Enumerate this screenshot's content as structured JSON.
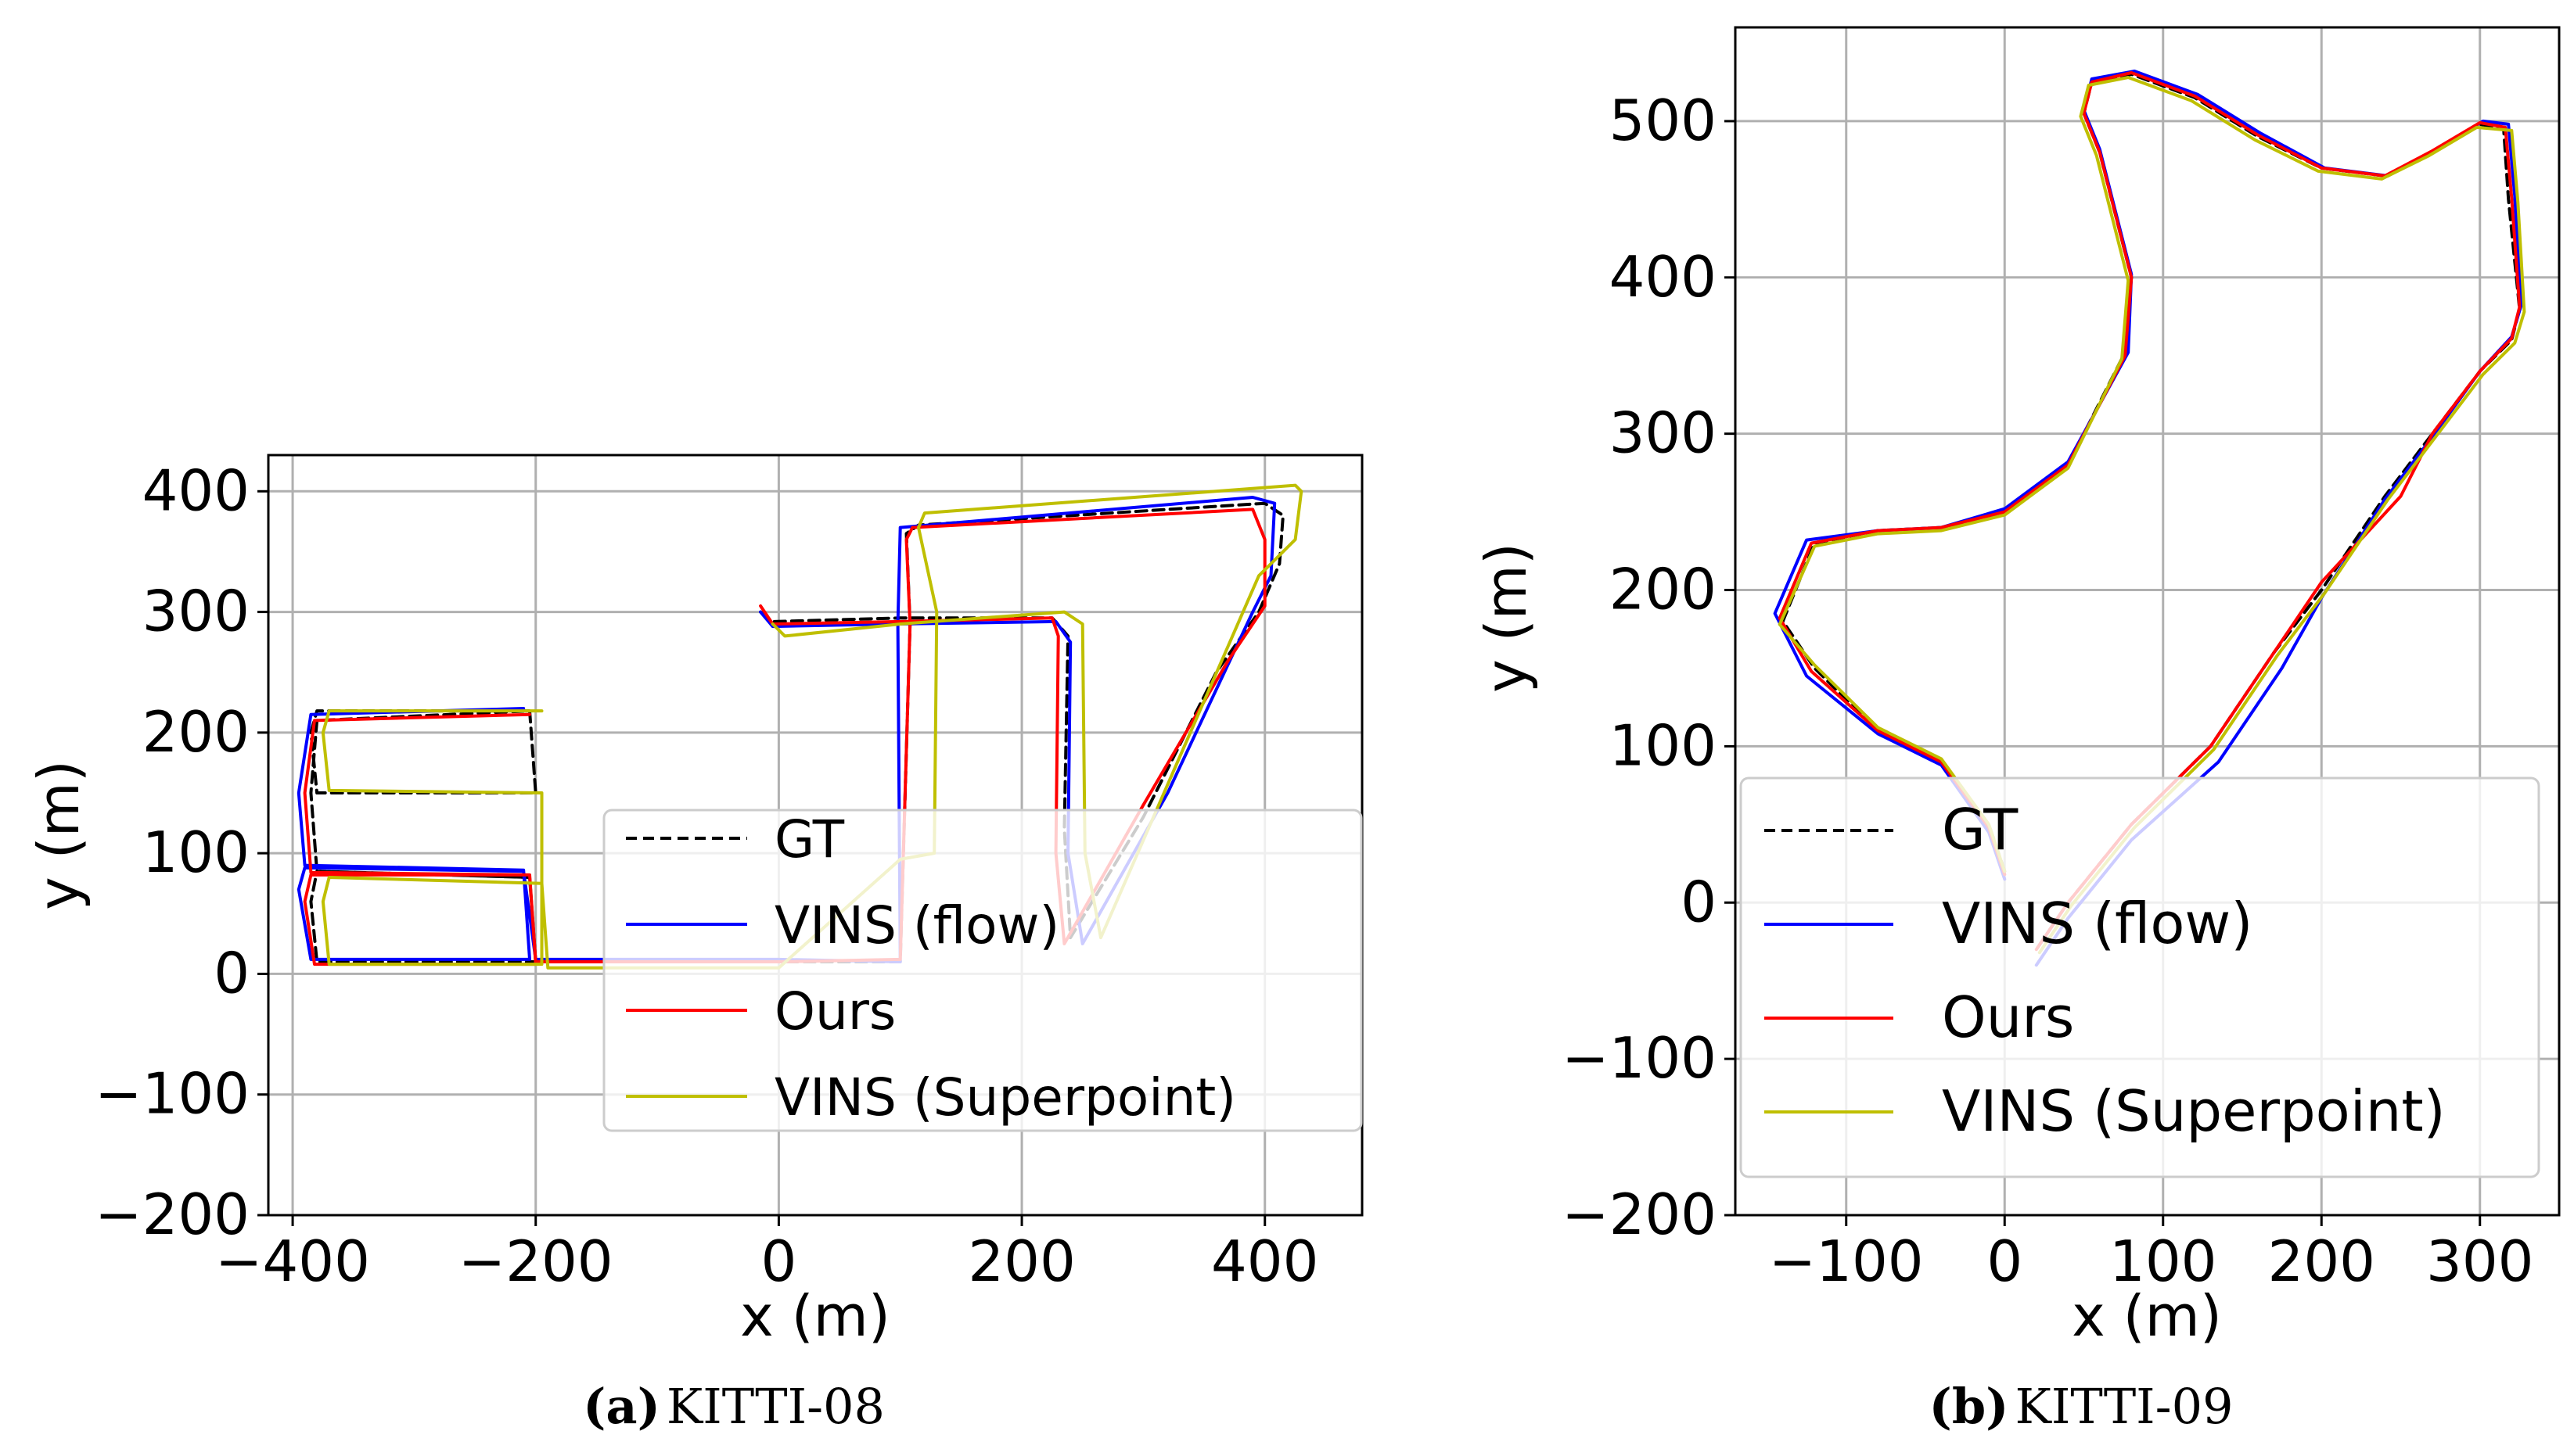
{
  "chart_data": [
    {
      "type": "line",
      "panel": "a",
      "caption_letter": "(a)",
      "caption_text": "KITTI-08",
      "xlabel": "x (m)",
      "ylabel": "y (m)",
      "xlim": [
        -420,
        480
      ],
      "ylim": [
        -200,
        430
      ],
      "xticks": [
        -400,
        -200,
        0,
        200,
        400
      ],
      "yticks": [
        -200,
        -100,
        0,
        100,
        200,
        300,
        400
      ],
      "xtick_labels": [
        "−400",
        "−200",
        "0",
        "200",
        "400"
      ],
      "ytick_labels": [
        "−200",
        "−100",
        "0",
        "100",
        "200",
        "300",
        "400"
      ],
      "grid": true,
      "legend_position": "lower-right",
      "series": [
        {
          "name": "GT",
          "color": "#000000",
          "style": "dashed",
          "x": [
            -15,
            -5,
            100,
            225,
            238,
            235,
            240,
            300,
            360,
            395,
            412,
            415,
            400,
            115,
            105,
            108,
            100,
            0,
            -200,
            -205,
            -380,
            -385,
            -380,
            -200,
            -205,
            -380,
            -385,
            -380,
            -205,
            -200,
            -380,
            -385,
            -380,
            -205
          ],
          "y": [
            300,
            292,
            295,
            295,
            280,
            120,
            30,
            130,
            250,
            300,
            340,
            380,
            390,
            372,
            365,
            290,
            10,
            10,
            10,
            80,
            85,
            60,
            10,
            10,
            80,
            85,
            150,
            210,
            218,
            150,
            150,
            200,
            218,
            218
          ]
        },
        {
          "name": "VINS (flow)",
          "color": "#0000ff",
          "style": "solid",
          "x": [
            -15,
            -5,
            95,
            228,
            240,
            238,
            250,
            320,
            390,
            405,
            408,
            390,
            100,
            98,
            100,
            0,
            -200,
            -210,
            -390,
            -395,
            -385,
            -205,
            -210,
            -390,
            -395,
            -385,
            -210
          ],
          "y": [
            300,
            288,
            290,
            292,
            275,
            100,
            25,
            150,
            300,
            330,
            390,
            395,
            370,
            290,
            10,
            12,
            12,
            85,
            88,
            70,
            12,
            12,
            86,
            90,
            150,
            215,
            220
          ]
        },
        {
          "name": "Ours",
          "color": "#ff0000",
          "style": "solid",
          "x": [
            -15,
            -5,
            100,
            225,
            230,
            228,
            235,
            300,
            370,
            400,
            400,
            390,
            110,
            105,
            108,
            100,
            0,
            -200,
            -205,
            -385,
            -390,
            -382,
            -200,
            -205,
            -385,
            -390,
            -382,
            -205
          ],
          "y": [
            305,
            290,
            292,
            295,
            280,
            100,
            25,
            140,
            260,
            305,
            360,
            385,
            370,
            360,
            290,
            12,
            10,
            10,
            82,
            82,
            60,
            8,
            8,
            82,
            84,
            150,
            210,
            215
          ]
        },
        {
          "name": "VINS (Superpoint)",
          "color": "#bfbf00",
          "style": "solid",
          "x": [
            -5,
            5,
            100,
            235,
            250,
            252,
            265,
            330,
            395,
            425,
            430,
            425,
            120,
            115,
            130,
            128,
            100,
            0,
            -190,
            -195,
            -370,
            -375,
            -370,
            -195,
            -195,
            -370,
            -375,
            -370,
            -195
          ],
          "y": [
            290,
            280,
            290,
            300,
            290,
            100,
            30,
            180,
            330,
            360,
            400,
            405,
            382,
            370,
            300,
            100,
            95,
            5,
            5,
            75,
            80,
            60,
            8,
            8,
            150,
            152,
            200,
            218,
            218
          ]
        }
      ]
    },
    {
      "type": "line",
      "panel": "b",
      "caption_letter": "(b)",
      "caption_text": "KITTI-09",
      "xlabel": "x (m)",
      "ylabel": "y (m)",
      "xlim": [
        -170,
        350
      ],
      "ylim": [
        -200,
        560
      ],
      "xticks": [
        -100,
        0,
        100,
        200,
        300
      ],
      "yticks": [
        -200,
        -100,
        0,
        100,
        200,
        300,
        400,
        500
      ],
      "xtick_labels": [
        "−100",
        "0",
        "100",
        "200",
        "300"
      ],
      "ytick_labels": [
        "−200",
        "−100",
        "0",
        "100",
        "200",
        "300",
        "400",
        "500"
      ],
      "grid": true,
      "legend_position": "lower-left",
      "series": [
        {
          "name": "GT",
          "color": "#000000",
          "style": "dashed",
          "x": [
            0,
            -10,
            -40,
            -80,
            -120,
            -140,
            -120,
            -80,
            -40,
            0,
            40,
            75,
            80,
            70,
            60,
            50,
            55,
            80,
            120,
            160,
            200,
            240,
            270,
            300,
            315,
            318,
            325,
            320,
            300,
            270,
            240,
            200,
            170,
            130,
            80,
            40,
            20
          ],
          "y": [
            20,
            50,
            90,
            110,
            150,
            180,
            230,
            238,
            240,
            250,
            280,
            350,
            400,
            440,
            480,
            505,
            525,
            530,
            515,
            490,
            470,
            465,
            480,
            498,
            495,
            450,
            380,
            360,
            340,
            300,
            260,
            200,
            160,
            100,
            50,
            0,
            -30
          ]
        },
        {
          "name": "VINS (flow)",
          "color": "#0000ff",
          "style": "solid",
          "x": [
            0,
            -10,
            -40,
            -80,
            -125,
            -145,
            -125,
            -80,
            -40,
            0,
            40,
            78,
            80,
            70,
            60,
            50,
            55,
            82,
            122,
            162,
            202,
            242,
            272,
            302,
            318,
            322,
            326,
            320,
            300,
            270,
            240,
            200,
            175,
            135,
            80,
            40,
            20
          ],
          "y": [
            15,
            45,
            88,
            108,
            145,
            185,
            232,
            238,
            240,
            252,
            282,
            352,
            402,
            442,
            482,
            507,
            527,
            532,
            517,
            492,
            470,
            465,
            482,
            500,
            498,
            452,
            382,
            362,
            340,
            298,
            258,
            195,
            150,
            90,
            40,
            -10,
            -40
          ]
        },
        {
          "name": "Ours",
          "color": "#ff0000",
          "style": "solid",
          "x": [
            0,
            -10,
            -40,
            -80,
            -122,
            -142,
            -122,
            -80,
            -40,
            0,
            40,
            76,
            80,
            70,
            60,
            50,
            55,
            80,
            120,
            160,
            200,
            240,
            270,
            300,
            316,
            320,
            325,
            320,
            300,
            270,
            250,
            200,
            170,
            130,
            80,
            40,
            20
          ],
          "y": [
            18,
            48,
            90,
            110,
            148,
            182,
            230,
            238,
            240,
            250,
            280,
            350,
            400,
            440,
            480,
            505,
            525,
            531,
            516,
            491,
            470,
            465,
            481,
            499,
            496,
            451,
            381,
            361,
            340,
            300,
            260,
            205,
            160,
            100,
            50,
            0,
            -30
          ]
        },
        {
          "name": "VINS (Superpoint)",
          "color": "#bfbf00",
          "style": "solid",
          "x": [
            0,
            -10,
            -40,
            -80,
            -120,
            -142,
            -120,
            -80,
            -40,
            0,
            40,
            74,
            78,
            68,
            58,
            48,
            53,
            78,
            118,
            158,
            198,
            238,
            268,
            298,
            320,
            324,
            328,
            322,
            302,
            272,
            242,
            202,
            172,
            132,
            82,
            42,
            22
          ],
          "y": [
            20,
            50,
            92,
            112,
            152,
            178,
            228,
            236,
            238,
            248,
            278,
            348,
            398,
            438,
            478,
            503,
            523,
            528,
            513,
            488,
            468,
            463,
            478,
            496,
            494,
            448,
            378,
            358,
            338,
            298,
            258,
            198,
            158,
            98,
            48,
            -2,
            -32
          ]
        }
      ]
    }
  ]
}
